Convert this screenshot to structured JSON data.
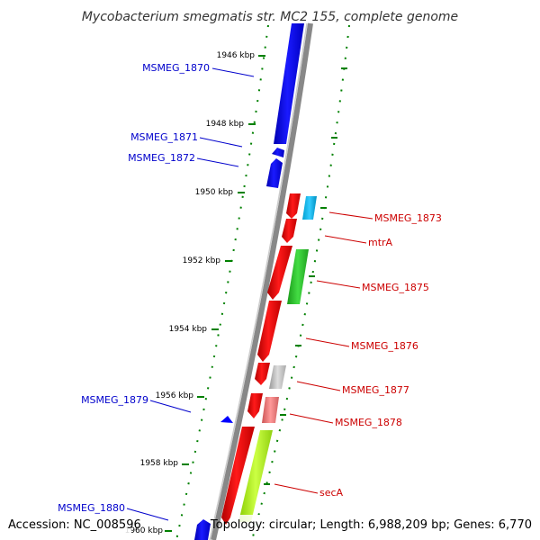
{
  "title": "Mycobacterium smegmatis str. MC2 155, complete genome",
  "footer": {
    "accession": "Accession: NC_008596",
    "summary": "Topology: circular; Length: 6,988,209 bp; Genes: 6,770"
  },
  "colors": {
    "forward_label": "#cc0000",
    "reverse_label": "#0000cc",
    "forward_strand": "#ff0000",
    "reverse_strand": "#0000ff",
    "backbone": "#888888",
    "tick": "#008000"
  },
  "ticks": [
    "1946 kbp",
    "1948 kbp",
    "1950 kbp",
    "1952 kbp",
    "1954 kbp",
    "1956 kbp",
    "1958 kbp",
    "1960 kbp"
  ],
  "reverse_genes": [
    {
      "label": "MSMEG_1870"
    },
    {
      "label": "MSMEG_1871"
    },
    {
      "label": "MSMEG_1872"
    },
    {
      "label": "MSMEG_1879"
    },
    {
      "label": "MSMEG_1880"
    }
  ],
  "forward_genes": [
    {
      "label": "MSMEG_1873"
    },
    {
      "label": "mtrA"
    },
    {
      "label": "MSMEG_1875"
    },
    {
      "label": "MSMEG_1876"
    },
    {
      "label": "MSMEG_1877"
    },
    {
      "label": "MSMEG_1878"
    },
    {
      "label": "secA"
    }
  ]
}
